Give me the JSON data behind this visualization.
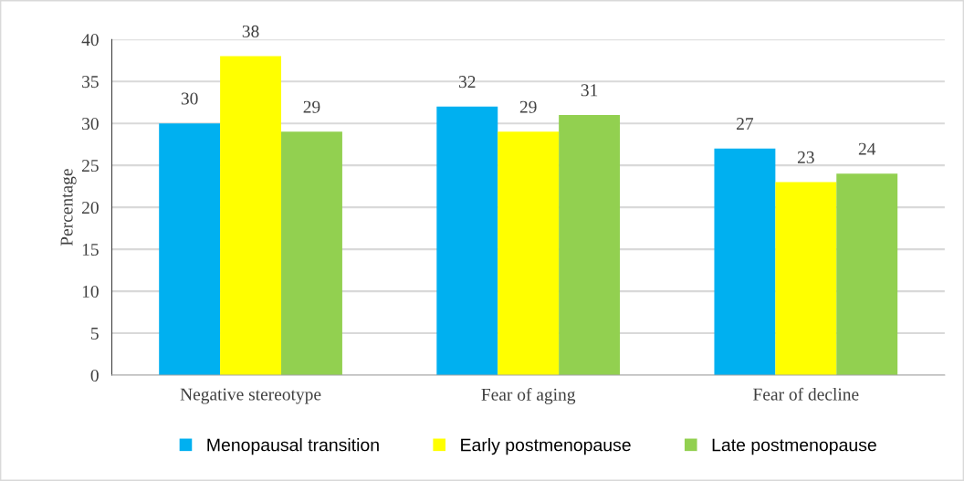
{
  "chart_data": {
    "type": "bar",
    "ylabel": "Percentage",
    "categories": [
      "Negative stereotype",
      "Fear of aging",
      "Fear of decline"
    ],
    "series": [
      {
        "name": "Menopausal transition",
        "color": "#00b0f0",
        "values": [
          30,
          32,
          27
        ]
      },
      {
        "name": "Early postmenopause",
        "color": "#ffff00",
        "values": [
          38,
          29,
          23
        ]
      },
      {
        "name": "Late postmenopause",
        "color": "#92d050",
        "values": [
          29,
          31,
          24
        ]
      }
    ],
    "ylim": [
      0,
      40
    ],
    "yticks": [
      0,
      5,
      10,
      15,
      20,
      25,
      30,
      35,
      40
    ],
    "grid": "y",
    "legend": "bottom",
    "data_labels": true
  }
}
